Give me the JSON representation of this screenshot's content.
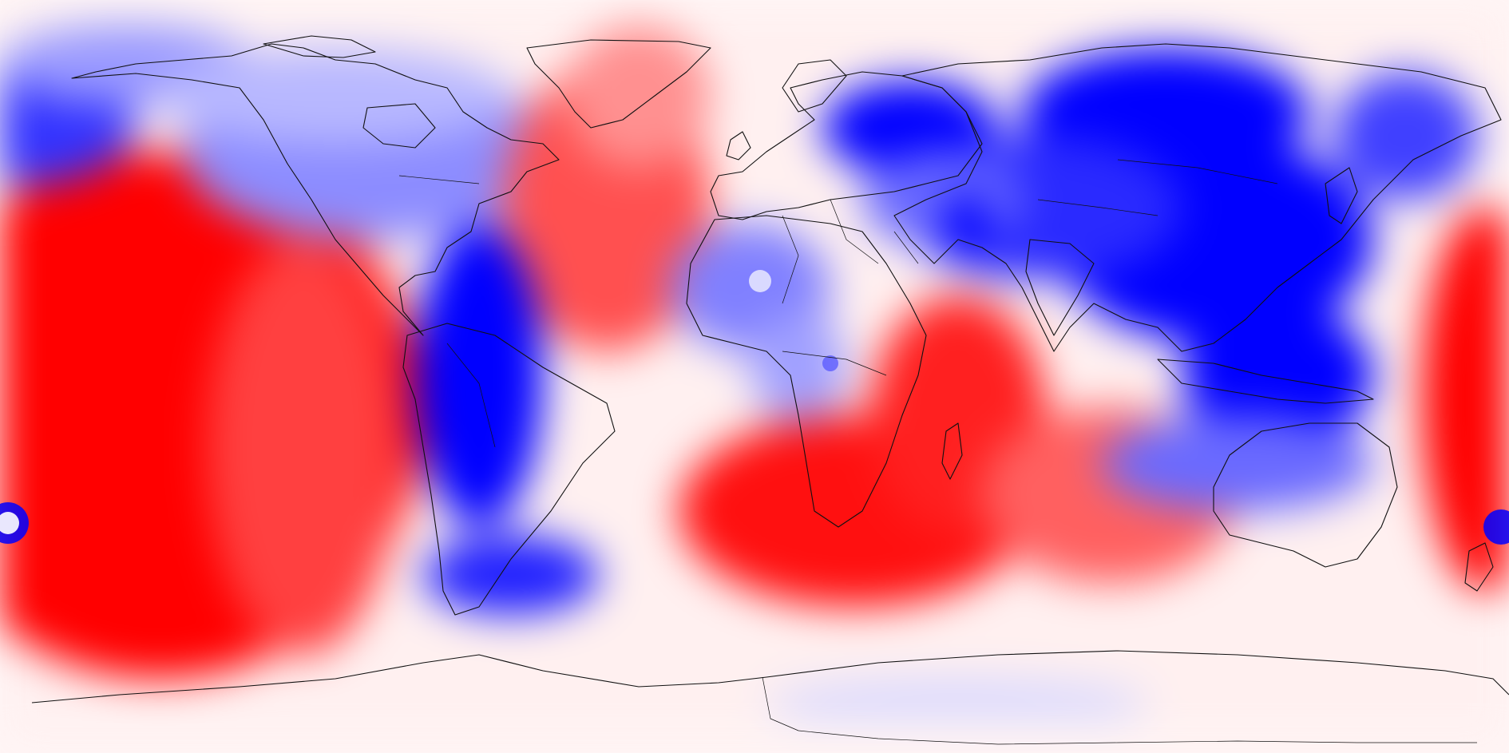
{
  "map": {
    "projection": "equirectangular",
    "extent": {
      "lon": [
        -180,
        180
      ],
      "lat": [
        -90,
        90
      ]
    },
    "colormap": [
      "#ff0000",
      "#ff4a4a",
      "#ff9a9a",
      "#ffd6d6",
      "#f4f4ff",
      "#c8c8ff",
      "#7878ff",
      "#0000ff"
    ],
    "background": "#ffffff",
    "coastline_color": "#111111"
  }
}
